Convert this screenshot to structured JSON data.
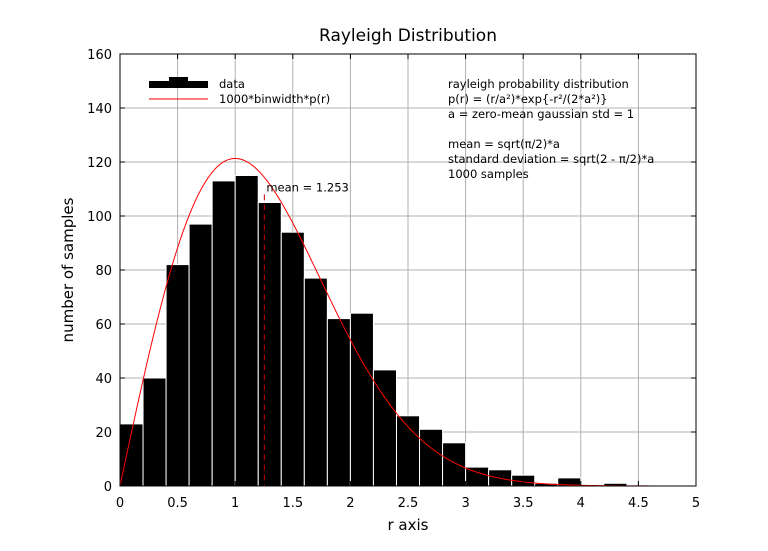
{
  "chart_data": {
    "type": "bar",
    "title": "Rayleigh Distribution",
    "xlabel": "r axis",
    "ylabel": "number of samples",
    "xlim": [
      0,
      5
    ],
    "ylim": [
      0,
      160
    ],
    "xticks": [
      0,
      0.5,
      1,
      1.5,
      2,
      2.5,
      3,
      3.5,
      4,
      4.5,
      5
    ],
    "xtick_labels": [
      "0",
      "0.5",
      "1",
      "1.5",
      "2",
      "2.5",
      "3",
      "3.5",
      "4",
      "4.5",
      "5"
    ],
    "yticks": [
      0,
      20,
      40,
      60,
      80,
      100,
      120,
      140,
      160
    ],
    "ytick_labels": [
      "0",
      "20",
      "40",
      "60",
      "80",
      "100",
      "120",
      "140",
      "160"
    ],
    "grid": true,
    "legend_position": "top-left",
    "bin_width": 0.2,
    "series": [
      {
        "name": "data",
        "type": "histogram",
        "color": "#000000",
        "bin_starts": [
          0.0,
          0.2,
          0.4,
          0.6,
          0.8,
          1.0,
          1.2,
          1.4,
          1.6,
          1.8,
          2.0,
          2.2,
          2.4,
          2.6,
          2.8,
          3.0,
          3.2,
          3.4,
          3.6,
          3.8,
          4.0,
          4.2,
          4.4,
          4.6,
          4.8
        ],
        "values": [
          23,
          40,
          82,
          97,
          113,
          115,
          105,
          94,
          77,
          62,
          64,
          43,
          26,
          21,
          16,
          7,
          6,
          4,
          1,
          3,
          0,
          1,
          0,
          0,
          0
        ]
      },
      {
        "name": "1000*binwidth*p(r)",
        "type": "line",
        "color": "#ff0000",
        "function": "1000*0.2*(r/a^2)*exp(-r^2/(2*a^2))",
        "a": 1
      }
    ],
    "mean_line": {
      "x": 1.253,
      "label": "mean = 1.253",
      "color": "#cc0000",
      "style": "dashed"
    },
    "annotations": [
      "rayleigh probability distribution",
      "p(r) = (r/a²)*exp{-r²/(2*a²)}",
      "a = zero-mean gaussian std = 1",
      "mean = sqrt(π/2)*a",
      "standard deviation = sqrt(2 - π/2)*a",
      "1000 samples"
    ]
  }
}
